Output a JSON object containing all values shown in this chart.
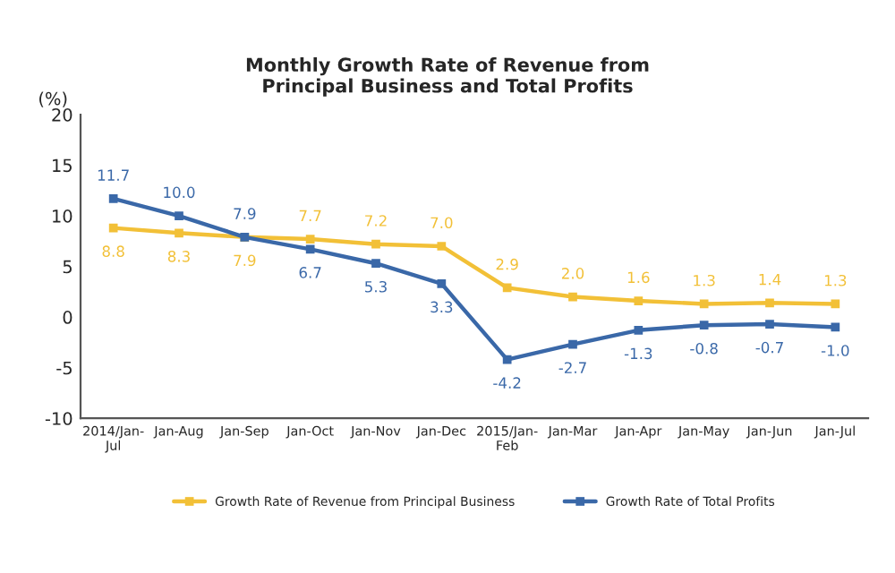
{
  "chart_data": {
    "type": "line",
    "title": "Monthly Growth Rate of Revenue from\nPrincipal Business and Total Profits",
    "ylabel": "(%)",
    "categories": [
      "2014/Jan-\nJul",
      "Jan-Aug",
      "Jan-Sep",
      "Jan-Oct",
      "Jan-Nov",
      "Jan-Dec",
      "2015/Jan-\nFeb",
      "Jan-Mar",
      "Jan-Apr",
      "Jan-May",
      "Jan-Jun",
      "Jan-Jul"
    ],
    "series": [
      {
        "name": "Growth Rate of Revenue from Principal Business",
        "color": "#f2c037",
        "values": [
          8.8,
          8.3,
          7.9,
          7.7,
          7.2,
          7.0,
          2.9,
          2.0,
          1.6,
          1.3,
          1.4,
          1.3
        ],
        "value_labels": [
          "8.8",
          "8.3",
          "7.9",
          "7.7",
          "7.2",
          "7.0",
          "2.9",
          "2.0",
          "1.6",
          "1.3",
          "1.4",
          "1.3"
        ]
      },
      {
        "name": "Growth Rate of Total Profits",
        "color": "#3a68a8",
        "values": [
          11.7,
          10.0,
          7.9,
          6.7,
          5.3,
          3.3,
          -4.2,
          -2.7,
          -1.3,
          -0.8,
          -0.7,
          -1.0
        ],
        "value_labels": [
          "11.7",
          "10.0",
          "7.9",
          "6.7",
          "5.3",
          "3.3",
          "-4.2",
          "-2.7",
          "-1.3",
          "-0.8",
          "-0.7",
          "-1.0"
        ]
      }
    ],
    "ylim": [
      -10,
      20
    ],
    "yticks": [
      -10,
      -5,
      0,
      5,
      10,
      15,
      20
    ],
    "legend": "bottom",
    "grid": false,
    "marker": "square",
    "line_style": "solid"
  }
}
